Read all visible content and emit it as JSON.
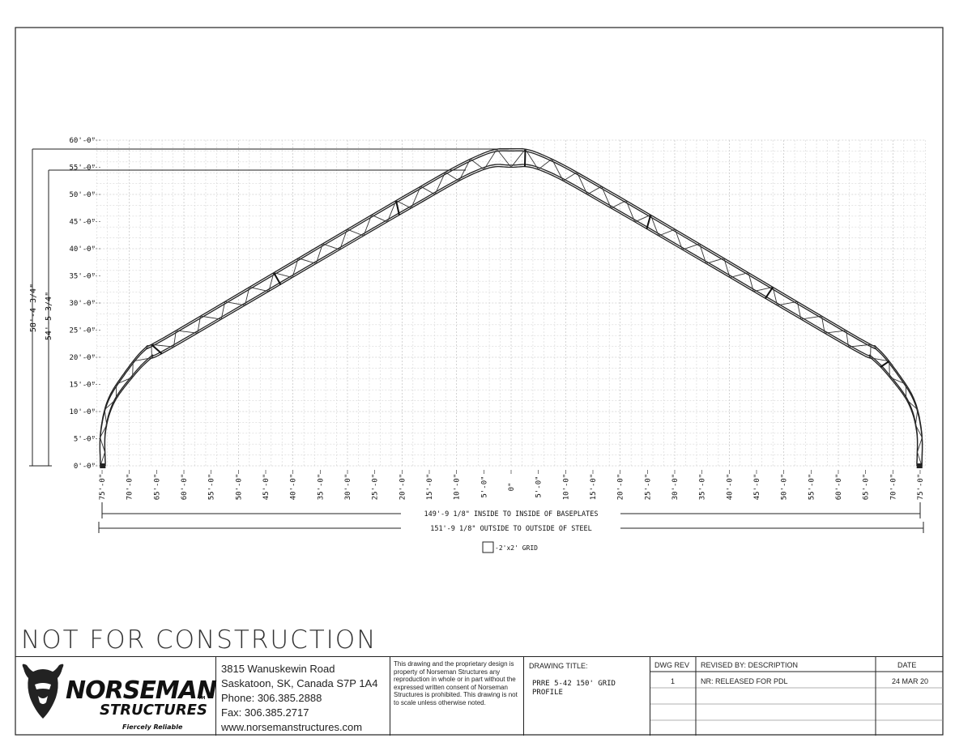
{
  "drawing": {
    "y_labels": [
      "0'-0\"",
      "5'-0\"",
      "10'-0\"",
      "15'-0\"",
      "20'-0\"",
      "25'-0\"",
      "30'-0\"",
      "35'-0\"",
      "40'-0\"",
      "45'-0\"",
      "50'-0\"",
      "55'-0\"",
      "60'-0\""
    ],
    "x_labels": [
      "75'-0\"",
      "70'-0\"",
      "65'-0\"",
      "60'-0\"",
      "55'-0\"",
      "50'-0\"",
      "45'-0\"",
      "40'-0\"",
      "35'-0\"",
      "30'-0\"",
      "25'-0\"",
      "20'-0\"",
      "15'-0\"",
      "10'-0\"",
      "5'-0\"",
      "0\"",
      "5'-0\"",
      "10'-0\"",
      "15'-0\"",
      "20'-0\"",
      "25'-0\"",
      "30'-0\"",
      "35'-0\"",
      "40'-0\"",
      "45'-0\"",
      "50'-0\"",
      "55'-0\"",
      "60'-0\"",
      "65'-0\"",
      "70'-0\"",
      "75'-0\""
    ],
    "dim_outer_height": "58'-4 3/4\"",
    "dim_inner_height": "54'-5 3/4\"",
    "dim_inside": "149'-9 1/8\" INSIDE TO INSIDE OF BASEPLATES",
    "dim_outside": "151'-9 1/8\" OUTSIDE TO OUTSIDE OF STEEL",
    "grid_legend": "-2'x2' GRID"
  },
  "watermark": "NOT FOR CONSTRUCTION",
  "title_block": {
    "logo_main": "NORSEMAN",
    "logo_tm": "TM",
    "logo_sub": "STRUCTURES",
    "logo_slogan": "Fiercely Reliable",
    "address": [
      "3815 Wanuskewin Road",
      "Saskatoon, SK, Canada S7P 1A4",
      "Phone: 306.385.2888",
      "Fax: 306.385.2717",
      "www.norsemanstructures.com"
    ],
    "disclaimer": "This drawing and the proprietary design is property of Norseman Structures any reproduction in whole or in part without the expressed written consent of Norseman Structures is prohibited. This drawing is not to scale unless otherwise noted.",
    "drawing_title_label": "DRAWING TITLE:",
    "drawing_title_line1": "PRRE 5-42 150' GRID",
    "drawing_title_line2": "PROFILE",
    "dwg_rev_label": "DWG REV",
    "revised_label": "REVISED BY: DESCRIPTION",
    "date_label": "DATE",
    "rev_value": "1",
    "revised_value": "NR: RELEASED FOR PDL",
    "date_value": "24 MAR 20"
  }
}
